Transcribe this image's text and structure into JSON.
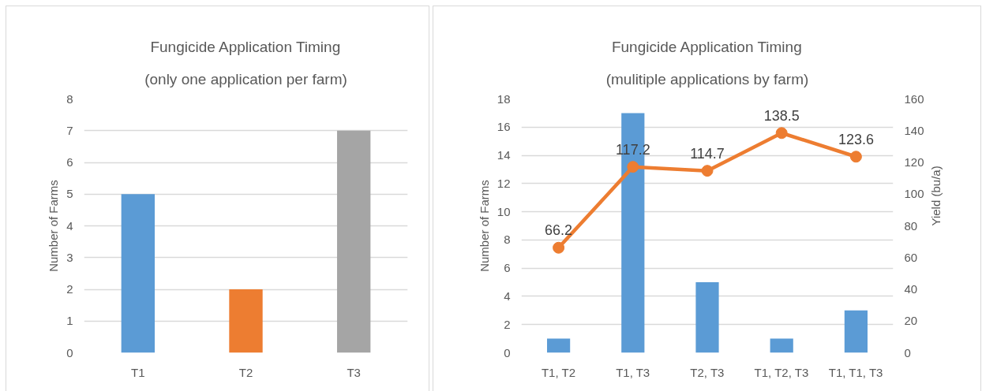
{
  "chart_data": [
    {
      "type": "bar",
      "title": "Fungicide Application Timing",
      "subtitle": "(only one application per farm)",
      "ylabel": "Number of Farms",
      "categories": [
        "T1",
        "T2",
        "T3"
      ],
      "values": [
        5,
        2,
        7
      ],
      "colors": [
        "#5b9bd5",
        "#ed7d31",
        "#a5a5a5"
      ],
      "ylim": [
        0,
        8
      ],
      "yticks": [
        0,
        1,
        2,
        3,
        4,
        5,
        6,
        7,
        8
      ],
      "grid": "y"
    },
    {
      "type": "bar",
      "title": "Fungicide Application Timing",
      "subtitle": "(mulitiple applications by farm)",
      "ylabel": "Number of Farms",
      "y2label": "Yield (bu/a)",
      "categories": [
        "T1, T2",
        "T1, T3",
        "T2, T3",
        "T1, T2, T3",
        "T1, T1, T3"
      ],
      "series": [
        {
          "type": "bar",
          "color": "#5b9bd5",
          "values": [
            1,
            17,
            5,
            1,
            3
          ]
        },
        {
          "type": "line",
          "axis": "y2",
          "color": "#ed7d31",
          "marker": "circle",
          "values": [
            66.2,
            117.2,
            114.7,
            138.5,
            123.6
          ],
          "value_labels": [
            "66.2",
            "117.2",
            "114.7",
            "138.5",
            "123.6"
          ]
        }
      ],
      "ylim": [
        0,
        18
      ],
      "yticks": [
        0,
        2,
        4,
        6,
        8,
        10,
        12,
        14,
        16,
        18
      ],
      "y2lim": [
        0,
        160
      ],
      "y2ticks": [
        0,
        20,
        40,
        60,
        80,
        100,
        120,
        140,
        160
      ],
      "grid": "y"
    }
  ]
}
